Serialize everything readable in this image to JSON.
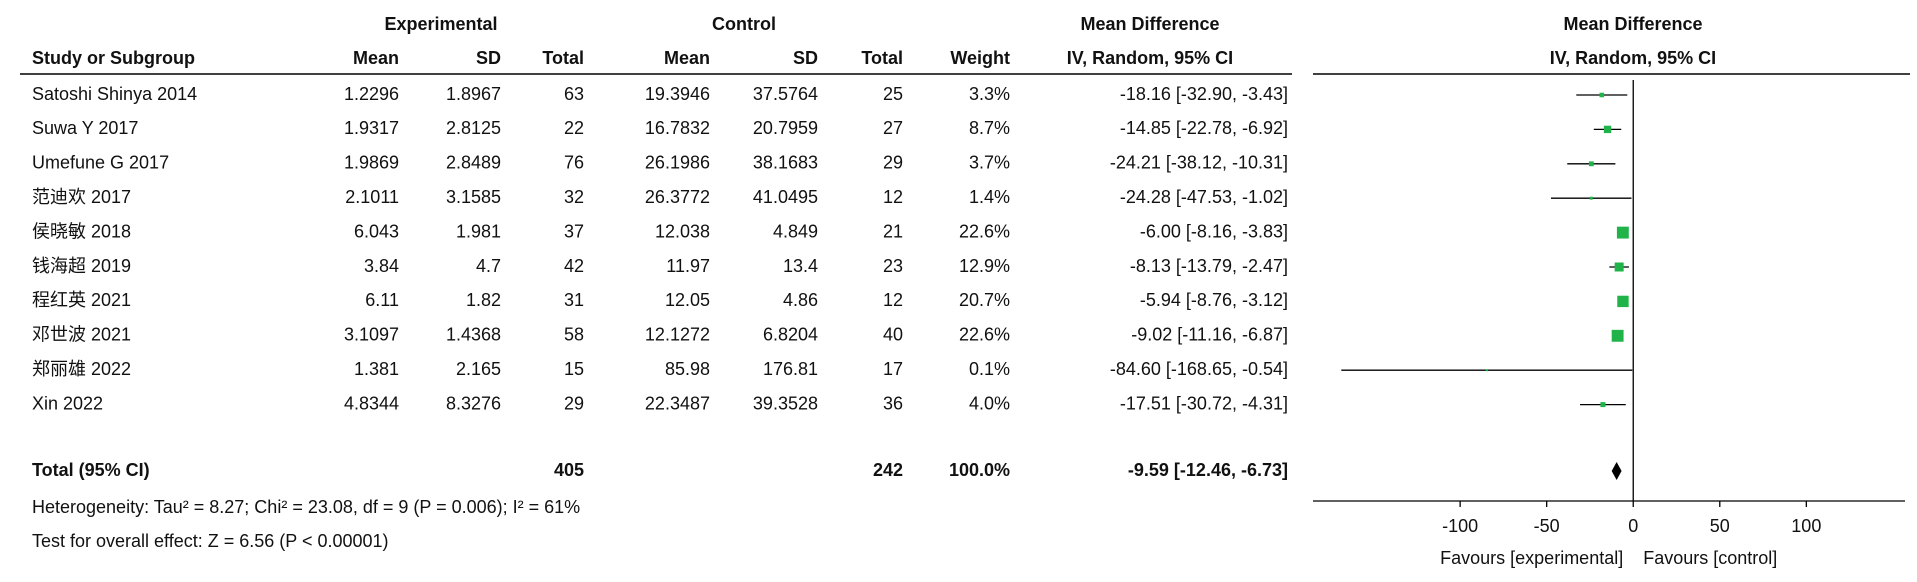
{
  "chart_data": {
    "type": "forest",
    "group_headers": [
      "Experimental",
      "Control",
      "Mean Difference",
      "Mean Difference"
    ],
    "column_headers": [
      "Study or Subgroup",
      "Mean",
      "SD",
      "Total",
      "Mean",
      "SD",
      "Total",
      "Weight",
      "IV, Random, 95% CI",
      "IV, Random, 95% CI"
    ],
    "studies": [
      {
        "name": "Satoshi Shinya 2014",
        "exp_mean": 1.2296,
        "exp_sd": 1.8967,
        "exp_total": 63,
        "ctl_mean": 19.3946,
        "ctl_sd": 37.5764,
        "ctl_total": 25,
        "weight": 3.3,
        "weight_label": "3.3%",
        "md": -18.16,
        "ci": [
          -32.9,
          -3.43
        ],
        "ci_label": "-18.16 [-32.90, -3.43]"
      },
      {
        "name": "Suwa Y 2017",
        "exp_mean": 1.9317,
        "exp_sd": 2.8125,
        "exp_total": 22,
        "ctl_mean": 16.7832,
        "ctl_sd": 20.7959,
        "ctl_total": 27,
        "weight": 8.7,
        "weight_label": "8.7%",
        "md": -14.85,
        "ci": [
          -22.78,
          -6.92
        ],
        "ci_label": "-14.85 [-22.78, -6.92]"
      },
      {
        "name": "Umefune G 2017",
        "exp_mean": 1.9869,
        "exp_sd": 2.8489,
        "exp_total": 76,
        "ctl_mean": 26.1986,
        "ctl_sd": 38.1683,
        "ctl_total": 29,
        "weight": 3.7,
        "weight_label": "3.7%",
        "md": -24.21,
        "ci": [
          -38.12,
          -10.31
        ],
        "ci_label": "-24.21 [-38.12, -10.31]"
      },
      {
        "name": "范迪欢 2017",
        "exp_mean": 2.1011,
        "exp_sd": 3.1585,
        "exp_total": 32,
        "ctl_mean": 26.3772,
        "ctl_sd": 41.0495,
        "ctl_total": 12,
        "weight": 1.4,
        "weight_label": "1.4%",
        "md": -24.28,
        "ci": [
          -47.53,
          -1.02
        ],
        "ci_label": "-24.28 [-47.53, -1.02]"
      },
      {
        "name": "侯晓敏 2018",
        "exp_mean": 6.043,
        "exp_sd": 1.981,
        "exp_total": 37,
        "ctl_mean": 12.038,
        "ctl_sd": 4.849,
        "ctl_total": 21,
        "weight": 22.6,
        "weight_label": "22.6%",
        "md": -6.0,
        "ci": [
          -8.16,
          -3.83
        ],
        "ci_label": "-6.00 [-8.16, -3.83]"
      },
      {
        "name": "钱海超 2019",
        "exp_mean": 3.84,
        "exp_sd": 4.7,
        "exp_total": 42,
        "ctl_mean": 11.97,
        "ctl_sd": 13.4,
        "ctl_total": 23,
        "weight": 12.9,
        "weight_label": "12.9%",
        "md": -8.13,
        "ci": [
          -13.79,
          -2.47
        ],
        "ci_label": "-8.13 [-13.79, -2.47]"
      },
      {
        "name": "程红英 2021",
        "exp_mean": 6.11,
        "exp_sd": 1.82,
        "exp_total": 31,
        "ctl_mean": 12.05,
        "ctl_sd": 4.86,
        "ctl_total": 12,
        "weight": 20.7,
        "weight_label": "20.7%",
        "md": -5.94,
        "ci": [
          -8.76,
          -3.12
        ],
        "ci_label": "-5.94 [-8.76, -3.12]"
      },
      {
        "name": "邓世波 2021",
        "exp_mean": 3.1097,
        "exp_sd": 1.4368,
        "exp_total": 58,
        "ctl_mean": 12.1272,
        "ctl_sd": 6.8204,
        "ctl_total": 40,
        "weight": 22.6,
        "weight_label": "22.6%",
        "md": -9.02,
        "ci": [
          -11.16,
          -6.87
        ],
        "ci_label": "-9.02 [-11.16, -6.87]"
      },
      {
        "name": "郑丽雄 2022",
        "exp_mean": 1.381,
        "exp_sd": 2.165,
        "exp_total": 15,
        "ctl_mean": 85.98,
        "ctl_sd": 176.81,
        "ctl_total": 17,
        "weight": 0.1,
        "weight_label": "0.1%",
        "md": -84.6,
        "ci": [
          -168.65,
          -0.54
        ],
        "ci_label": "-84.60 [-168.65, -0.54]"
      },
      {
        "name": "Xin 2022",
        "exp_mean": 4.8344,
        "exp_sd": 8.3276,
        "exp_total": 29,
        "ctl_mean": 22.3487,
        "ctl_sd": 39.3528,
        "ctl_total": 36,
        "weight": 4.0,
        "weight_label": "4.0%",
        "md": -17.51,
        "ci": [
          -30.72,
          -4.31
        ],
        "ci_label": "-17.51 [-30.72, -4.31]"
      }
    ],
    "total": {
      "name": "Total (95% CI)",
      "exp_total": 405,
      "ctl_total": 242,
      "weight": 100,
      "weight_label": "100.0%",
      "md": -9.59,
      "ci": [
        -12.46,
        -6.73
      ],
      "ci_label": "-9.59 [-12.46, -6.73]"
    },
    "heterogeneity": "Heterogeneity: Tau² = 8.27; Chi² = 23.08, df = 9 (P = 0.006); I² = 61%",
    "overall_effect": "Test for overall effect: Z = 6.56 (P < 0.00001)",
    "xlim": [
      -185,
      157
    ],
    "xticks": [
      -100,
      -50,
      0,
      50,
      100
    ],
    "favours": [
      "Favours [experimental]",
      "Favours [control]"
    ],
    "color": "#1fb34a"
  }
}
